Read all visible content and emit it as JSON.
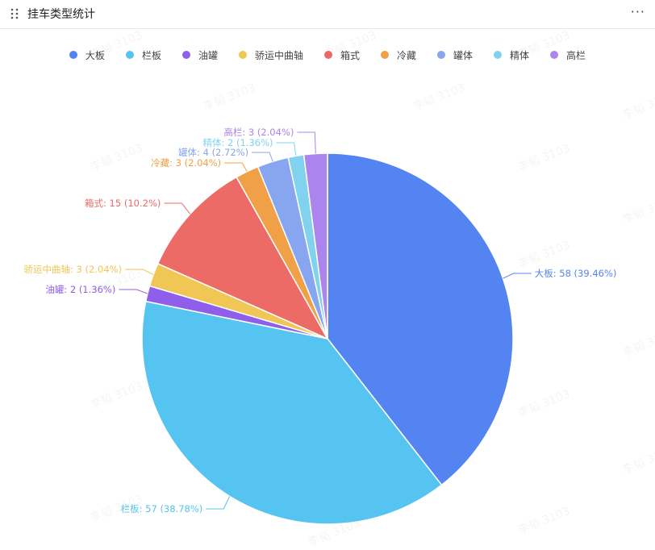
{
  "header": {
    "title": "挂车类型统计",
    "more_label": "···"
  },
  "watermark": "李韬 3103",
  "chart_data": {
    "type": "pie",
    "title": "挂车类型统计",
    "legend_position": "top",
    "slices": [
      {
        "name": "大板",
        "value": 58,
        "percent": "39.46%",
        "color": "#5484F1"
      },
      {
        "name": "栏板",
        "value": 57,
        "percent": "38.78%",
        "color": "#55C4F0"
      },
      {
        "name": "油罐",
        "value": 2,
        "percent": "1.36%",
        "color": "#8F5EEB"
      },
      {
        "name": "骄运中曲轴",
        "value": 3,
        "percent": "2.04%",
        "color": "#F0C655"
      },
      {
        "name": "箱式",
        "value": 15,
        "percent": "10.2%",
        "color": "#EC6B66"
      },
      {
        "name": "冷藏",
        "value": 3,
        "percent": "2.04%",
        "color": "#F0A046"
      },
      {
        "name": "罐体",
        "value": 4,
        "percent": "2.72%",
        "color": "#88A5F0"
      },
      {
        "name": "精体",
        "value": 2,
        "percent": "1.36%",
        "color": "#80D2EF"
      },
      {
        "name": "高栏",
        "value": 3,
        "percent": "2.04%",
        "color": "#AB84EE"
      }
    ]
  }
}
